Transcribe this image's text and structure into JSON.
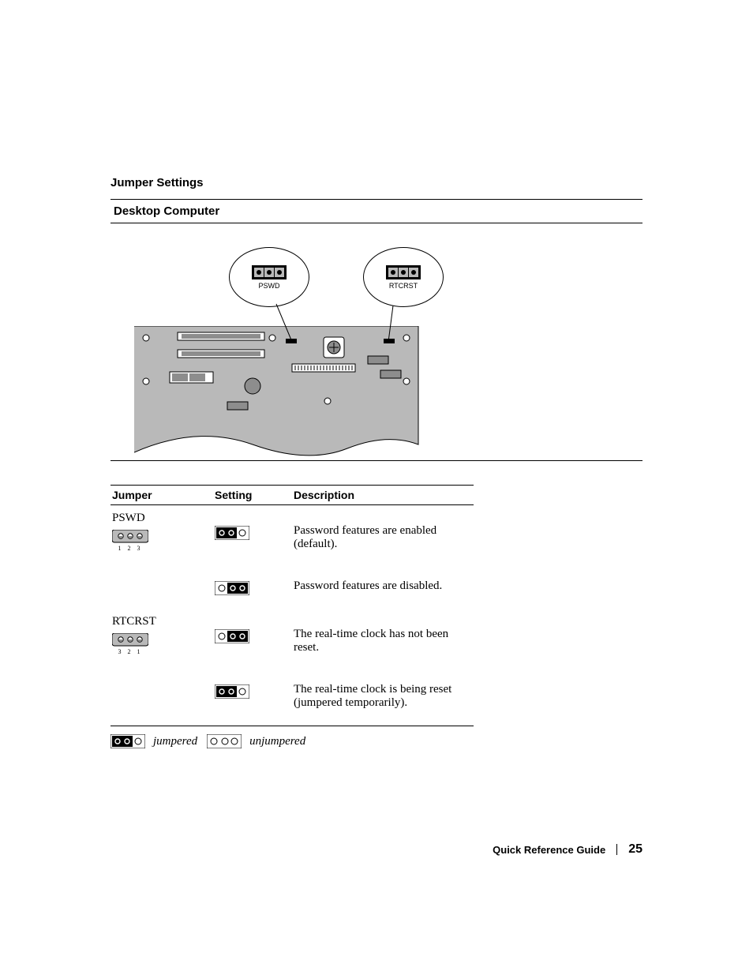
{
  "section_title": "Jumper Settings",
  "subhead": "Desktop Computer",
  "callouts": {
    "left": "PSWD",
    "right": "RTCRST"
  },
  "table": {
    "headers": [
      "Jumper",
      "Setting",
      "Description"
    ],
    "rows": [
      {
        "jumper_name": "PSWD",
        "pin_labels": "1 2 3",
        "pin_setting": "12",
        "desc": "Password features are enabled (default)."
      },
      {
        "jumper_name": "",
        "pin_labels": "",
        "pin_setting": "23",
        "desc": "Password features are disabled."
      },
      {
        "jumper_name": "RTCRST",
        "pin_labels": "3 2 1",
        "pin_setting": "23",
        "desc": "The real-time clock has not been reset."
      },
      {
        "jumper_name": "",
        "pin_labels": "",
        "pin_setting": "12",
        "desc": "The real-time clock is being reset (jumpered temporarily)."
      }
    ]
  },
  "legend": {
    "jumpered": "jumpered",
    "unjumpered": "unjumpered"
  },
  "footer": {
    "guide": "Quick Reference Guide",
    "page": "25"
  },
  "colors": {
    "board": "#b9b9b9",
    "board_dark": "#8d8d8d",
    "ink": "#000000",
    "white": "#ffffff"
  }
}
